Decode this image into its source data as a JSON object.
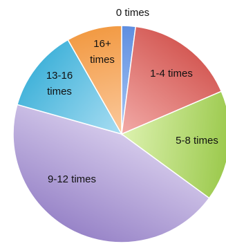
{
  "chart_data": {
    "type": "pie",
    "title": "",
    "legend": "none",
    "slices": [
      {
        "label": "0 times",
        "value": 2,
        "color_light": "#a9c8f5",
        "color_dark": "#5f8ee0"
      },
      {
        "label": "1-4 times",
        "value": 16,
        "color_light": "#f2aaa7",
        "color_dark": "#d45a55"
      },
      {
        "label": "5-8 times",
        "value": 16,
        "color_light": "#ddf2b0",
        "color_dark": "#9bc94c"
      },
      {
        "label": "9-12 times",
        "value": 43,
        "color_light": "#d3c8ea",
        "color_dark": "#9884c8"
      },
      {
        "label": "13-16 times",
        "value": 12,
        "color_light": "#a8ddf2",
        "color_dark": "#43b3da"
      },
      {
        "label": "16+ times",
        "value": 8,
        "color_light": "#fbc99d",
        "color_dark": "#f29a43"
      }
    ]
  }
}
